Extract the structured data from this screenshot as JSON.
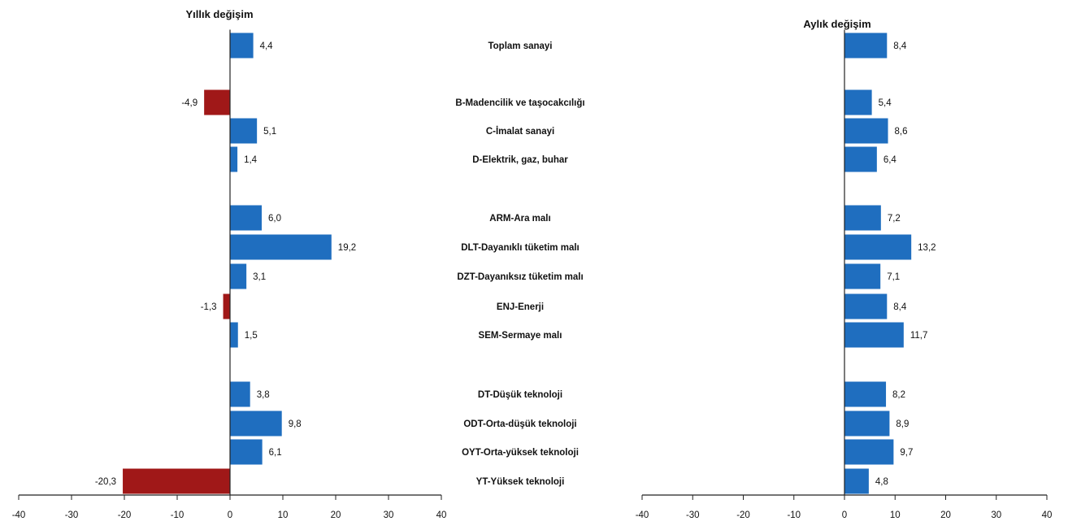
{
  "colors": {
    "positive": "#1f6ebf",
    "negative": "#a01818",
    "axis": "#222222"
  },
  "chart_data": [
    {
      "type": "bar",
      "orientation": "horizontal",
      "title": "Yıllık değişim",
      "xlim": [
        -40,
        40
      ],
      "ticks": [
        "-40",
        "-30",
        "-20",
        "-10",
        "0",
        "10",
        "20",
        "30",
        "40"
      ],
      "rows": [
        {
          "category": "Toplam sanayi",
          "value": 4.4,
          "label": "4,4"
        },
        {
          "category": "B-Madencilik ve taşocakcılığı",
          "value": -4.9,
          "label": "-4,9"
        },
        {
          "category": "C-İmalat sanayi",
          "value": 5.1,
          "label": "5,1"
        },
        {
          "category": "D-Elektrik, gaz, buhar",
          "value": 1.4,
          "label": "1,4"
        },
        {
          "category": "ARM-Ara malı",
          "value": 6.0,
          "label": "6,0"
        },
        {
          "category": "DLT-Dayanıklı tüketim malı",
          "value": 19.2,
          "label": "19,2"
        },
        {
          "category": "DZT-Dayanıksız tüketim malı",
          "value": 3.1,
          "label": "3,1"
        },
        {
          "category": "ENJ-Enerji",
          "value": -1.3,
          "label": "-1,3"
        },
        {
          "category": "SEM-Sermaye malı",
          "value": 1.5,
          "label": "1,5"
        },
        {
          "category": "DT-Düşük teknoloji",
          "value": 3.8,
          "label": "3,8"
        },
        {
          "category": "ODT-Orta-düşük teknoloji",
          "value": 9.8,
          "label": "9,8"
        },
        {
          "category": "OYT-Orta-yüksek teknoloji",
          "value": 6.1,
          "label": "6,1"
        },
        {
          "category": "YT-Yüksek teknoloji",
          "value": -20.3,
          "label": "-20,3"
        }
      ]
    },
    {
      "type": "bar",
      "orientation": "horizontal",
      "title": "Aylık değişim",
      "xlim": [
        -40,
        40
      ],
      "ticks": [
        "-40",
        "-30",
        "-20",
        "-10",
        "0",
        "10",
        "20",
        "30",
        "40"
      ],
      "rows": [
        {
          "category": "Toplam sanayi",
          "value": 8.4,
          "label": "8,4"
        },
        {
          "category": "B-Madencilik ve taşocakcılığı",
          "value": 5.4,
          "label": "5,4"
        },
        {
          "category": "C-İmalat sanayi",
          "value": 8.6,
          "label": "8,6"
        },
        {
          "category": "D-Elektrik, gaz, buhar",
          "value": 6.4,
          "label": "6,4"
        },
        {
          "category": "ARM-Ara malı",
          "value": 7.2,
          "label": "7,2"
        },
        {
          "category": "DLT-Dayanıklı tüketim malı",
          "value": 13.2,
          "label": "13,2"
        },
        {
          "category": "DZT-Dayanıksız tüketim malı",
          "value": 7.1,
          "label": "7,1"
        },
        {
          "category": "ENJ-Enerji",
          "value": 8.4,
          "label": "8,4"
        },
        {
          "category": "SEM-Sermaye malı",
          "value": 11.7,
          "label": "11,7"
        },
        {
          "category": "DT-Düşük teknoloji",
          "value": 8.2,
          "label": "8,2"
        },
        {
          "category": "ODT-Orta-düşük teknoloji",
          "value": 8.9,
          "label": "8,9"
        },
        {
          "category": "OYT-Orta-yüksek teknoloji",
          "value": 9.7,
          "label": "9,7"
        },
        {
          "category": "YT-Yüksek teknoloji",
          "value": 4.8,
          "label": "4,8"
        }
      ]
    }
  ]
}
